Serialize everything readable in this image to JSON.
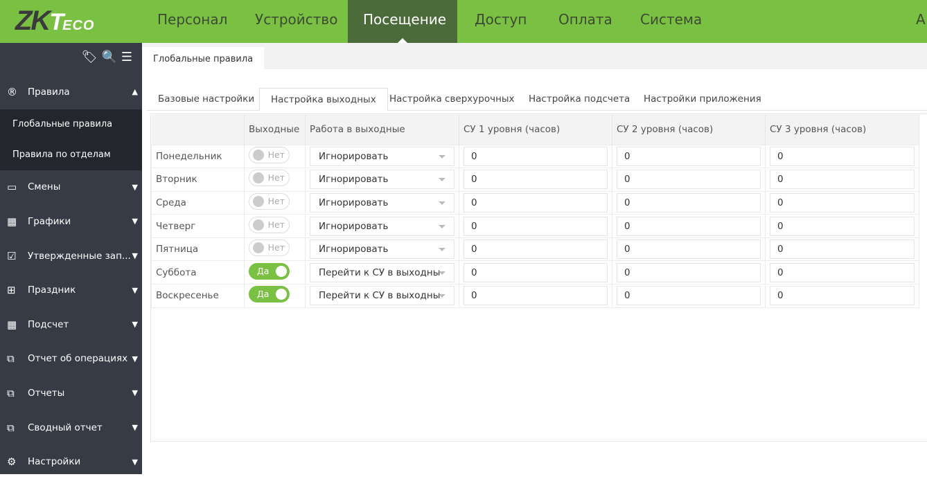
{
  "header": {
    "logo": "ZKTeco",
    "nav": [
      "Персонал",
      "Устройство",
      "Посещение",
      "Доступ",
      "Оплата",
      "Система"
    ],
    "active": "Посещение",
    "user_initial": "А"
  },
  "sidebar": {
    "section": "Правила",
    "subitems": [
      "Глобальные правила",
      "Правила по отделам"
    ],
    "items": [
      {
        "label": "Смены",
        "icon": "calendar-icon"
      },
      {
        "label": "Графики",
        "icon": "grid-calendar-icon"
      },
      {
        "label": "Утвержденные зап...",
        "icon": "checkbox-icon"
      },
      {
        "label": "Праздник",
        "icon": "calendar-plus-icon"
      },
      {
        "label": "Подсчет",
        "icon": "calculator-icon"
      },
      {
        "label": "Отчет об операциях",
        "icon": "copy-icon"
      },
      {
        "label": "Отчеты",
        "icon": "copy-icon"
      },
      {
        "label": "Сводный отчет",
        "icon": "copy-icon"
      },
      {
        "label": "Настройки",
        "icon": "gears-icon"
      }
    ]
  },
  "page_tab": "Глобальные правила",
  "subtabs": [
    "Базовые настройки",
    "Настройка выходных",
    "Настройка сверхурочных",
    "Настройка подсчета",
    "Настройки приложения"
  ],
  "active_subtab": "Настройка выходных",
  "table": {
    "headers": [
      "",
      "Выходные",
      "Работа в выходные",
      "СУ 1 уровня (часов)",
      "СУ 2 уровня (часов)",
      "СУ 3 уровня (часов)"
    ],
    "rows": [
      {
        "day": "Понедельник",
        "weekend": false,
        "toggle": "Нет",
        "work": "Игнорировать",
        "su1": "0",
        "su2": "0",
        "su3": "0"
      },
      {
        "day": "Вторник",
        "weekend": false,
        "toggle": "Нет",
        "work": "Игнорировать",
        "su1": "0",
        "su2": "0",
        "su3": "0"
      },
      {
        "day": "Среда",
        "weekend": false,
        "toggle": "Нет",
        "work": "Игнорировать",
        "su1": "0",
        "su2": "0",
        "su3": "0"
      },
      {
        "day": "Четверг",
        "weekend": false,
        "toggle": "Нет",
        "work": "Игнорировать",
        "su1": "0",
        "su2": "0",
        "su3": "0"
      },
      {
        "day": "Пятница",
        "weekend": false,
        "toggle": "Нет",
        "work": "Игнорировать",
        "su1": "0",
        "su2": "0",
        "su3": "0"
      },
      {
        "day": "Суббота",
        "weekend": true,
        "toggle": "Да",
        "work": "Перейти к СУ в выходны",
        "su1": "0",
        "su2": "0",
        "su3": "0"
      },
      {
        "day": "Воскресенье",
        "weekend": true,
        "toggle": "Да",
        "work": "Перейти к СУ в выходны",
        "su1": "0",
        "su2": "0",
        "su3": "0"
      }
    ]
  },
  "colors": {
    "brand_green": "#7ac143",
    "active_nav": "#4c6b3a",
    "sidebar": "#363b46"
  }
}
